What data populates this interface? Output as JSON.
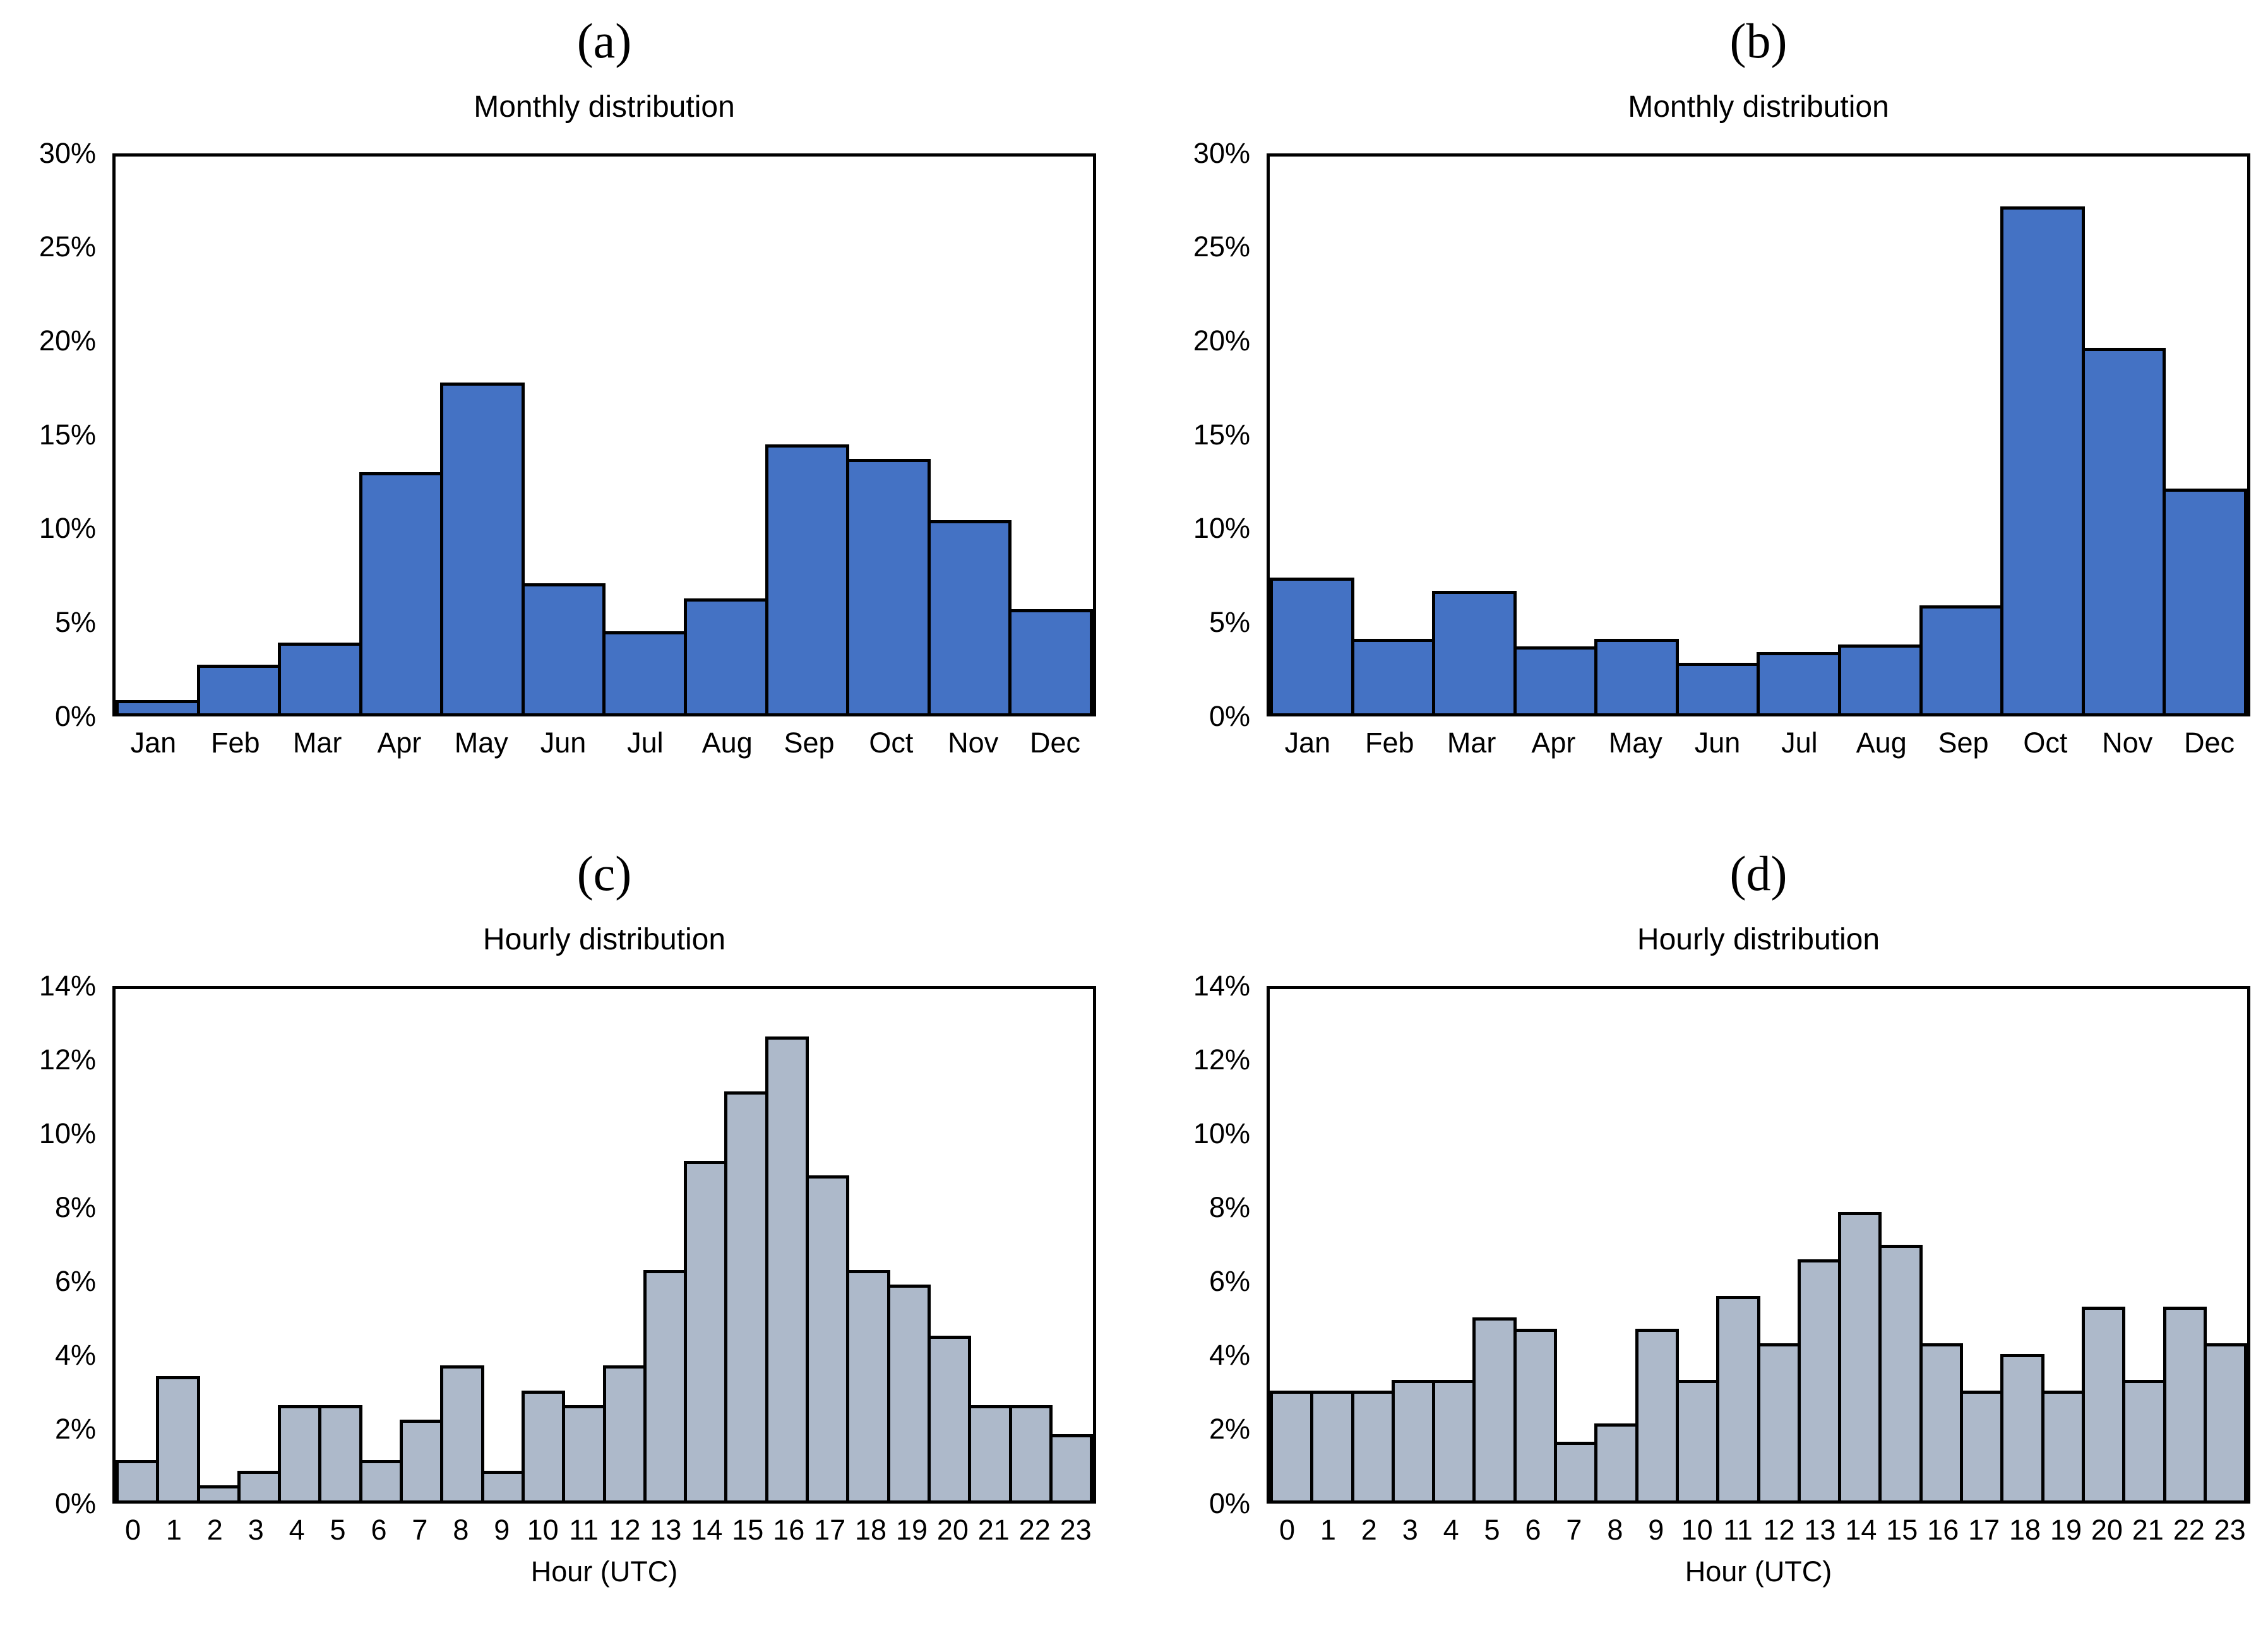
{
  "figure": {
    "background": "#ffffff",
    "bar_outline_color": "#000000",
    "monthly_bar_color": "#4472C4",
    "hourly_bar_color": "#ADB9CA"
  },
  "chart_data": [
    {
      "panel": "(a)",
      "title": "Monthly distribution",
      "type": "bar",
      "categories": [
        "Jan",
        "Feb",
        "Mar",
        "Apr",
        "May",
        "Jun",
        "Jul",
        "Aug",
        "Sep",
        "Oct",
        "Nov",
        "Dec"
      ],
      "values": [
        0.7,
        2.6,
        3.8,
        13.0,
        17.8,
        7.0,
        4.4,
        6.2,
        14.5,
        13.7,
        10.4,
        5.6
      ],
      "xlabel": "",
      "ylabel": "",
      "ylim": [
        0,
        30
      ],
      "ytick_step": 5,
      "ytick_suffix": "%",
      "grid": false,
      "legend": "none",
      "bar_color": "#4472C4"
    },
    {
      "panel": "(b)",
      "title": "Monthly distribution",
      "type": "bar",
      "categories": [
        "Jan",
        "Feb",
        "Mar",
        "Apr",
        "May",
        "Jun",
        "Jul",
        "Aug",
        "Sep",
        "Oct",
        "Nov",
        "Dec"
      ],
      "values": [
        7.3,
        4.0,
        6.6,
        3.6,
        4.0,
        2.7,
        3.3,
        3.7,
        5.8,
        27.3,
        19.7,
        12.1
      ],
      "xlabel": "",
      "ylabel": "",
      "ylim": [
        0,
        30
      ],
      "ytick_step": 5,
      "ytick_suffix": "%",
      "grid": false,
      "legend": "none",
      "bar_color": "#4472C4"
    },
    {
      "panel": "(c)",
      "title": "Hourly distribution",
      "type": "bar",
      "categories": [
        "0",
        "1",
        "2",
        "3",
        "4",
        "5",
        "6",
        "7",
        "8",
        "9",
        "10",
        "11",
        "12",
        "13",
        "14",
        "15",
        "16",
        "17",
        "18",
        "19",
        "20",
        "21",
        "22",
        "23"
      ],
      "values": [
        1.1,
        3.4,
        0.4,
        0.8,
        2.6,
        2.6,
        1.1,
        2.2,
        3.7,
        0.8,
        3.0,
        2.6,
        3.7,
        6.3,
        9.3,
        11.2,
        12.7,
        8.9,
        6.3,
        5.9,
        4.5,
        2.6,
        2.6,
        1.8
      ],
      "xlabel": "Hour (UTC)",
      "ylabel": "",
      "ylim": [
        0,
        14
      ],
      "ytick_step": 2,
      "ytick_suffix": "%",
      "grid": false,
      "legend": "none",
      "bar_color": "#ADB9CA"
    },
    {
      "panel": "(d)",
      "title": "Hourly distribution",
      "type": "bar",
      "categories": [
        "0",
        "1",
        "2",
        "3",
        "4",
        "5",
        "6",
        "7",
        "8",
        "9",
        "10",
        "11",
        "12",
        "13",
        "14",
        "15",
        "16",
        "17",
        "18",
        "19",
        "20",
        "21",
        "22",
        "23"
      ],
      "values": [
        3.0,
        3.0,
        3.0,
        3.3,
        3.3,
        5.0,
        4.7,
        1.6,
        2.1,
        4.7,
        3.3,
        5.6,
        4.3,
        6.6,
        7.9,
        7.0,
        4.3,
        3.0,
        4.0,
        3.0,
        5.3,
        3.3,
        5.3,
        4.3
      ],
      "xlabel": "Hour (UTC)",
      "ylabel": "",
      "ylim": [
        0,
        14
      ],
      "ytick_step": 2,
      "ytick_suffix": "%",
      "grid": false,
      "legend": "none",
      "bar_color": "#ADB9CA"
    }
  ]
}
